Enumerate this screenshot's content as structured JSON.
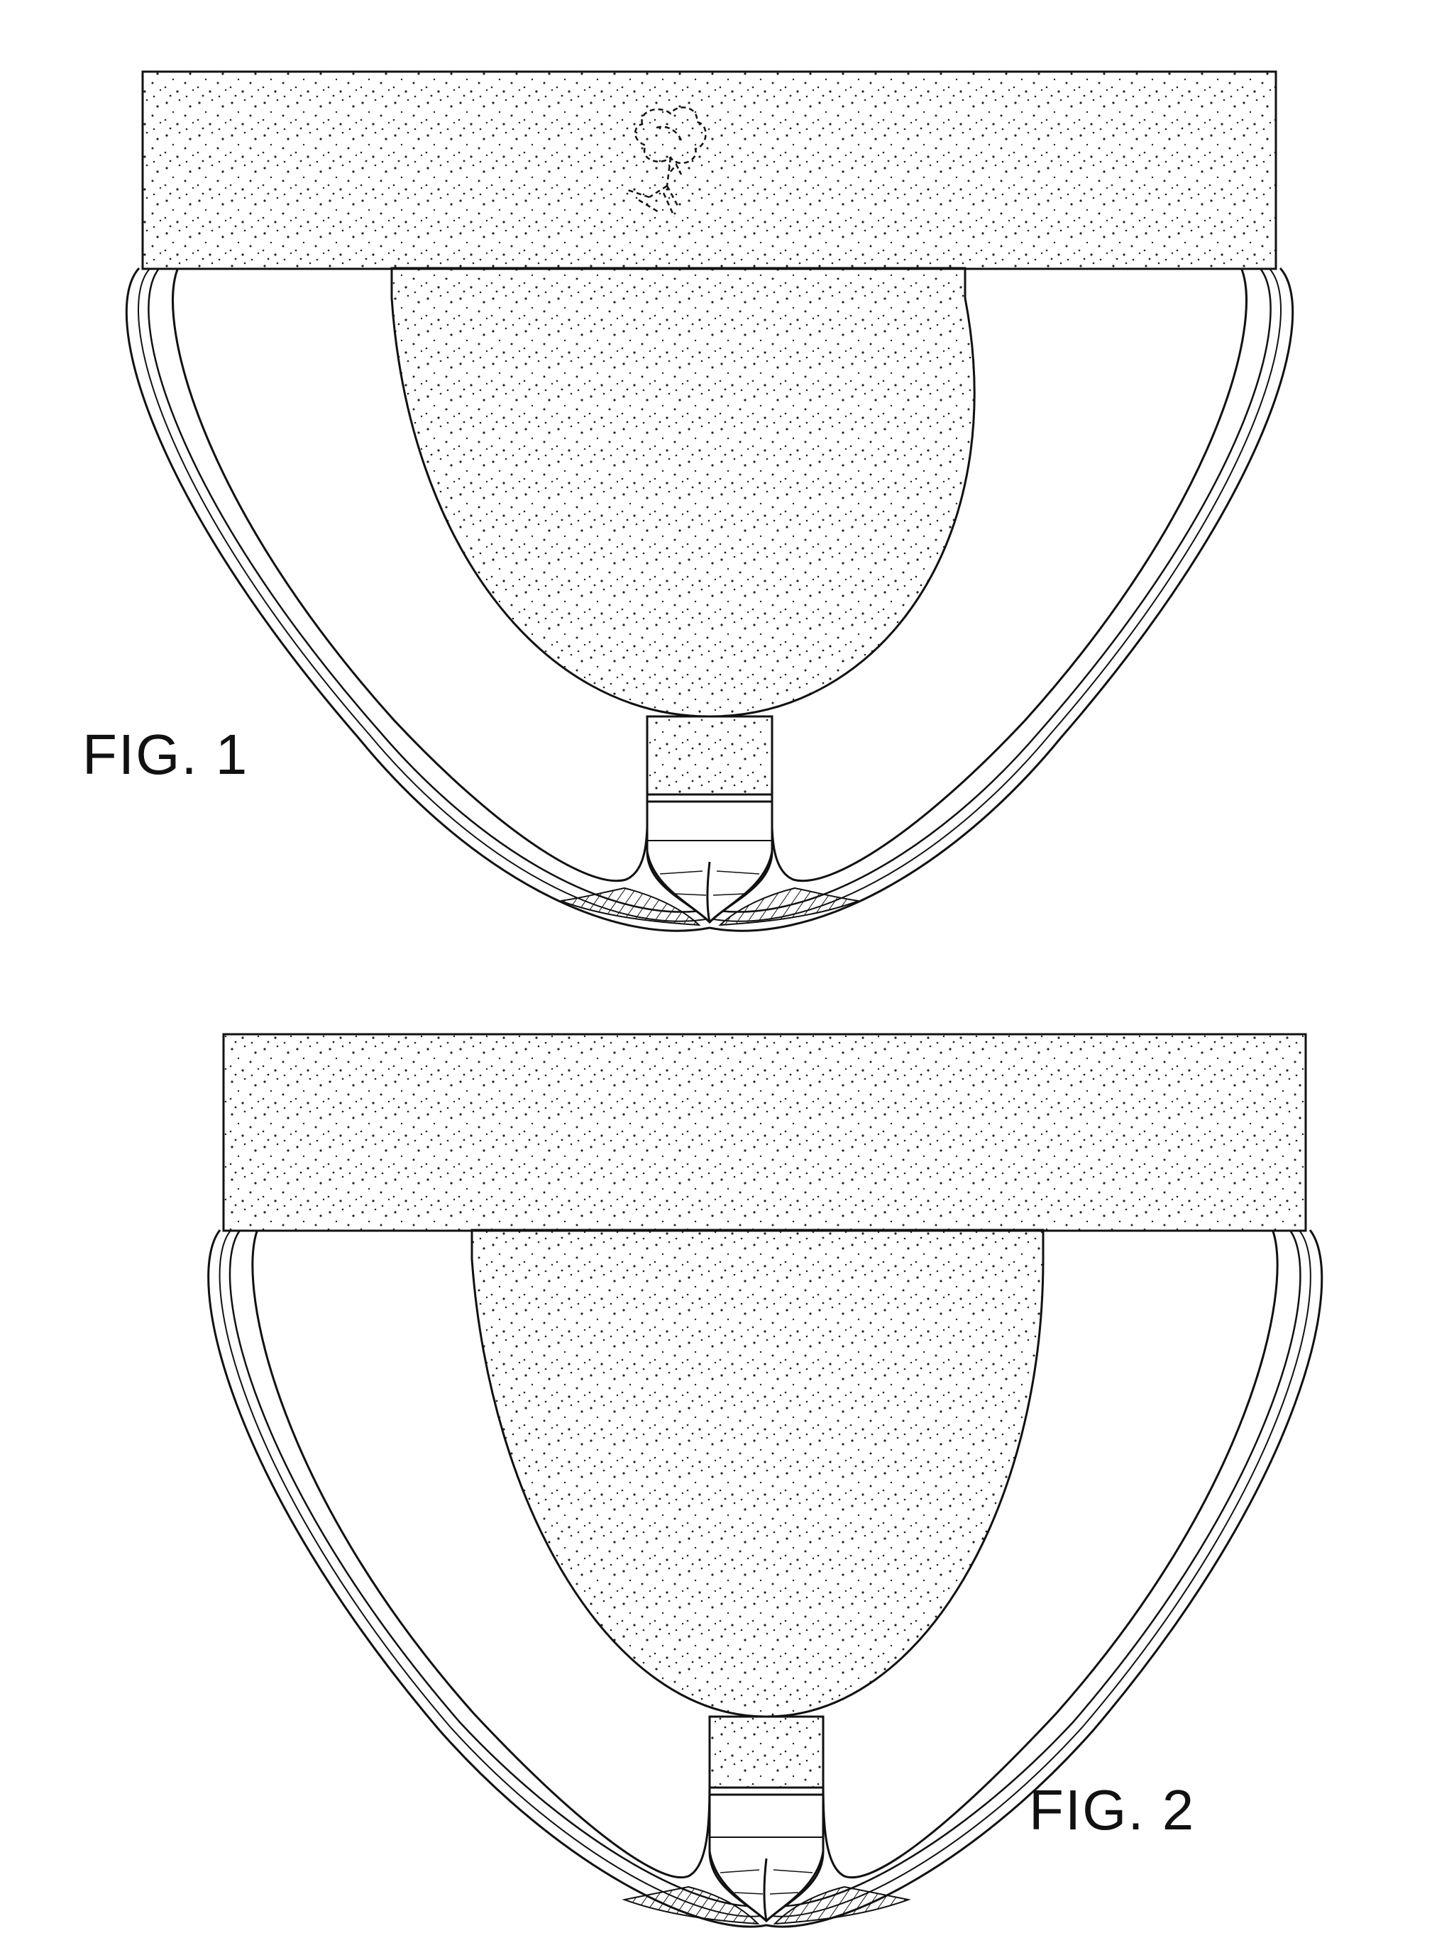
{
  "figures": [
    {
      "label": "FIG. 1",
      "view": "front",
      "graphic_mark": "floral-logo-icon"
    },
    {
      "label": "FIG. 2",
      "view": "rear"
    }
  ],
  "colors": {
    "line": "#111111",
    "paper": "#ffffff",
    "stipple": "#222222"
  }
}
